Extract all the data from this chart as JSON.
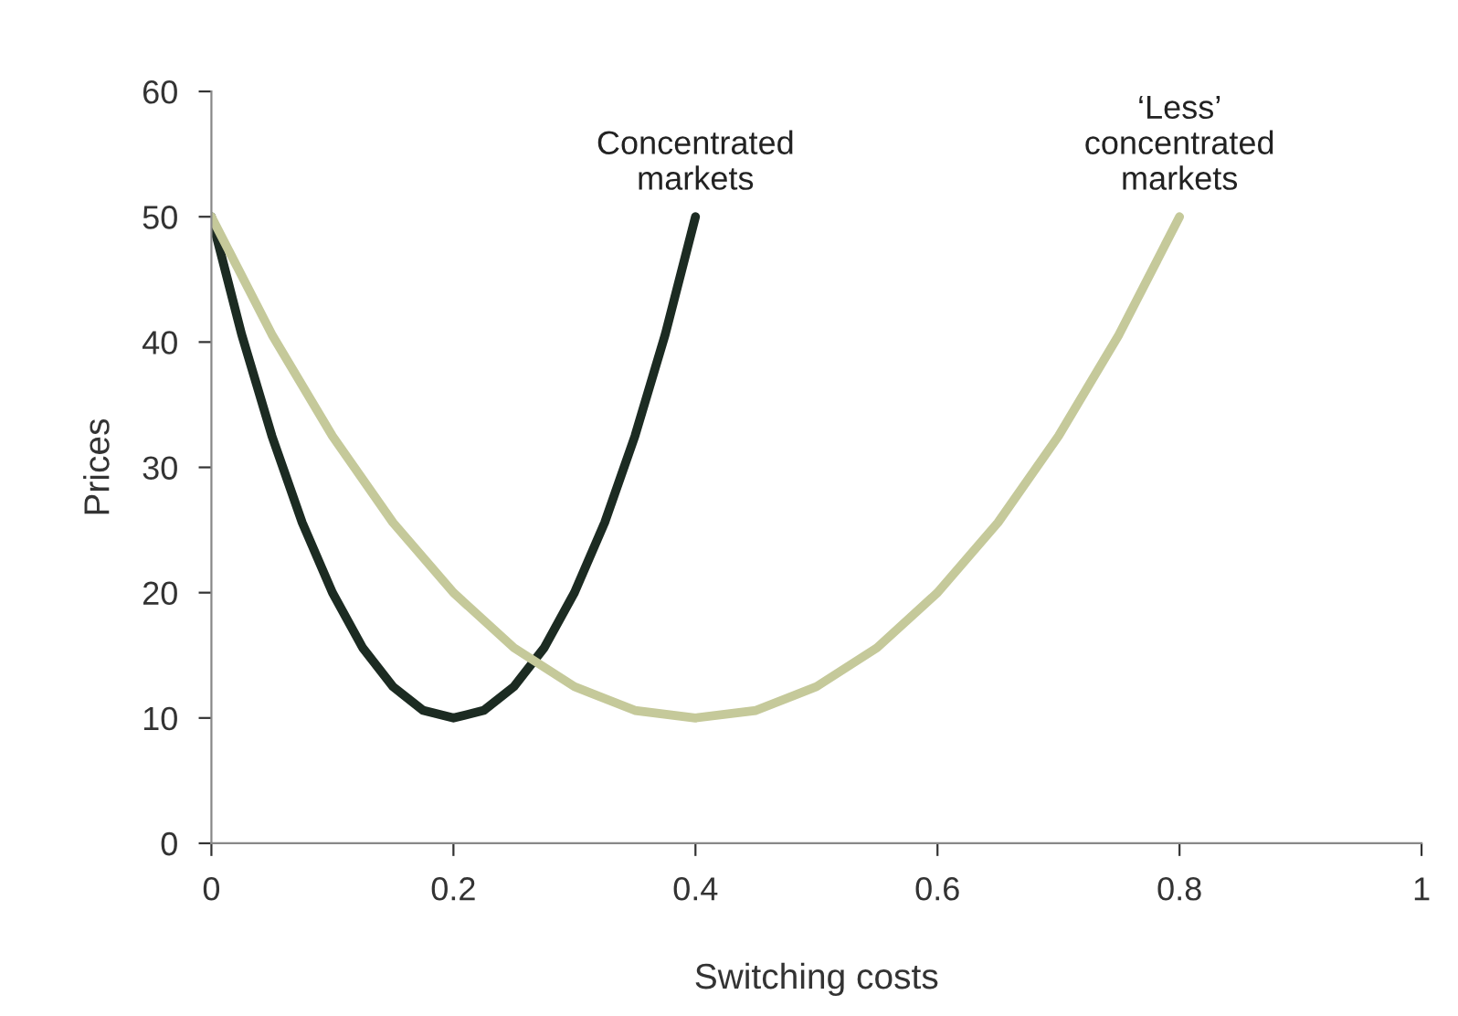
{
  "chart_data": {
    "type": "line",
    "xlabel": "Switching costs",
    "ylabel": "Prices",
    "xlim": [
      0,
      1
    ],
    "xticks": [
      0,
      0.2,
      0.4,
      0.6,
      0.8,
      1
    ],
    "ylim": [
      0,
      60
    ],
    "yticks": [
      0,
      10,
      20,
      30,
      40,
      50,
      60
    ],
    "grid": false,
    "legend": false,
    "marker": "none",
    "line_style": "solid",
    "series": [
      {
        "name": "Concentrated\nmarkets",
        "color": "#1c2b22",
        "x": [
          0,
          0.025,
          0.05,
          0.075,
          0.1,
          0.125,
          0.15,
          0.175,
          0.2,
          0.225,
          0.25,
          0.275,
          0.3,
          0.325,
          0.35,
          0.375,
          0.4
        ],
        "values": [
          50,
          40.6,
          32.5,
          25.6,
          20,
          15.6,
          12.5,
          10.6,
          10,
          10.6,
          12.5,
          15.6,
          20,
          25.6,
          32.5,
          40.6,
          50
        ]
      },
      {
        "name": "‘Less’\nconcentrated\nmarkets",
        "color": "#c5c99a",
        "x": [
          0,
          0.05,
          0.1,
          0.15,
          0.2,
          0.25,
          0.3,
          0.35,
          0.4,
          0.45,
          0.5,
          0.55,
          0.6,
          0.65,
          0.7,
          0.75,
          0.8
        ],
        "values": [
          50,
          40.6,
          32.5,
          25.6,
          20,
          15.6,
          12.5,
          10.6,
          10,
          10.6,
          12.5,
          15.6,
          20,
          25.6,
          32.5,
          40.6,
          50
        ]
      }
    ]
  }
}
